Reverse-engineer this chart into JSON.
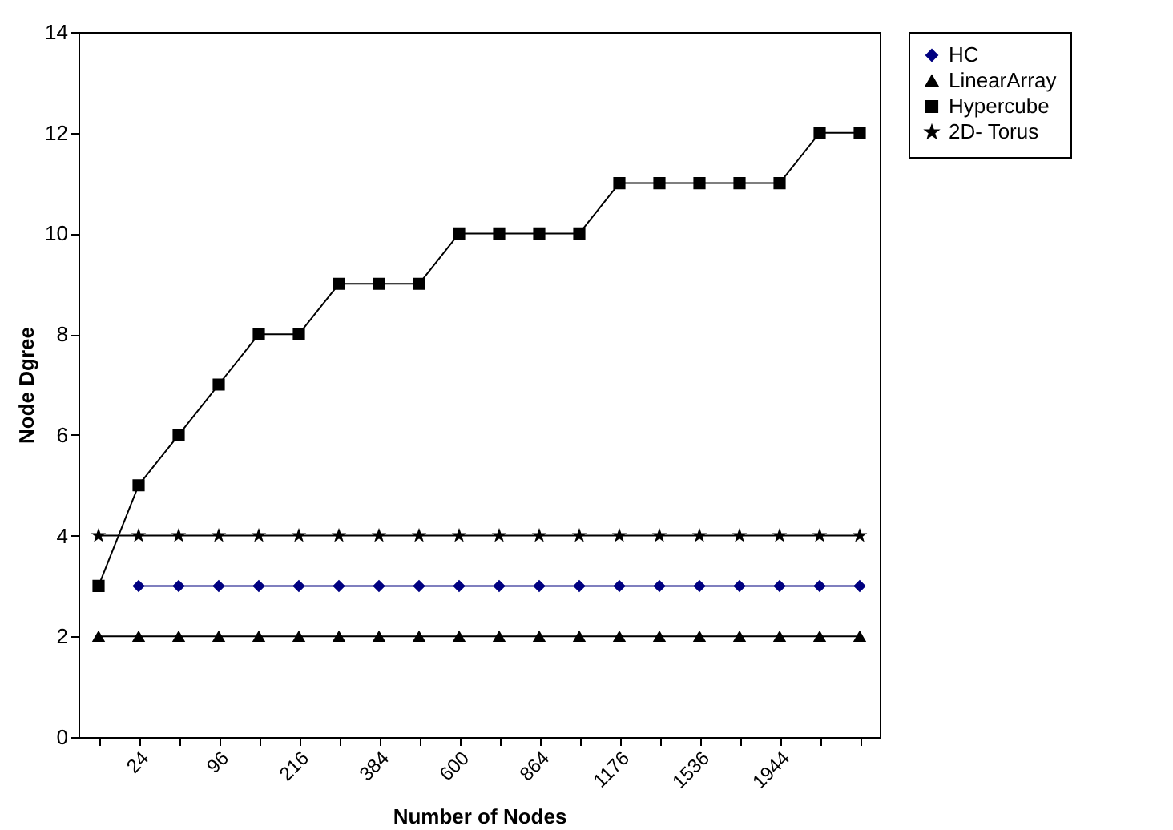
{
  "chart_data": {
    "type": "line",
    "xlabel": "Number of Nodes",
    "ylabel": "Node Dgree",
    "categories": [
      null,
      "24",
      null,
      "96",
      null,
      "216",
      null,
      "384",
      null,
      "600",
      null,
      "864",
      null,
      "1176",
      null,
      "1536",
      null,
      "1944",
      null,
      null
    ],
    "series": [
      {
        "name": "HC",
        "color": "#000080",
        "marker": "diamond",
        "values": [
          null,
          3,
          3,
          3,
          3,
          3,
          3,
          3,
          3,
          3,
          3,
          3,
          3,
          3,
          3,
          3,
          3,
          3,
          3,
          3
        ]
      },
      {
        "name": "LinearArray",
        "color": "#000000",
        "marker": "triangle",
        "values": [
          2,
          2,
          2,
          2,
          2,
          2,
          2,
          2,
          2,
          2,
          2,
          2,
          2,
          2,
          2,
          2,
          2,
          2,
          2,
          2
        ]
      },
      {
        "name": "Hypercube",
        "color": "#000000",
        "marker": "square",
        "values": [
          3,
          5,
          6,
          7,
          8,
          8,
          9,
          9,
          9,
          10,
          10,
          10,
          10,
          11,
          11,
          11,
          11,
          11,
          12,
          12
        ]
      },
      {
        "name": "2D- Torus",
        "color": "#000000",
        "marker": "star",
        "values": [
          4,
          4,
          4,
          4,
          4,
          4,
          4,
          4,
          4,
          4,
          4,
          4,
          4,
          4,
          4,
          4,
          4,
          4,
          4,
          4
        ]
      }
    ],
    "ylim": [
      0,
      14
    ],
    "yticks": [
      0,
      2,
      4,
      6,
      8,
      10,
      12,
      14
    ],
    "grid": false,
    "legend": "right",
    "line_style": "solid"
  }
}
